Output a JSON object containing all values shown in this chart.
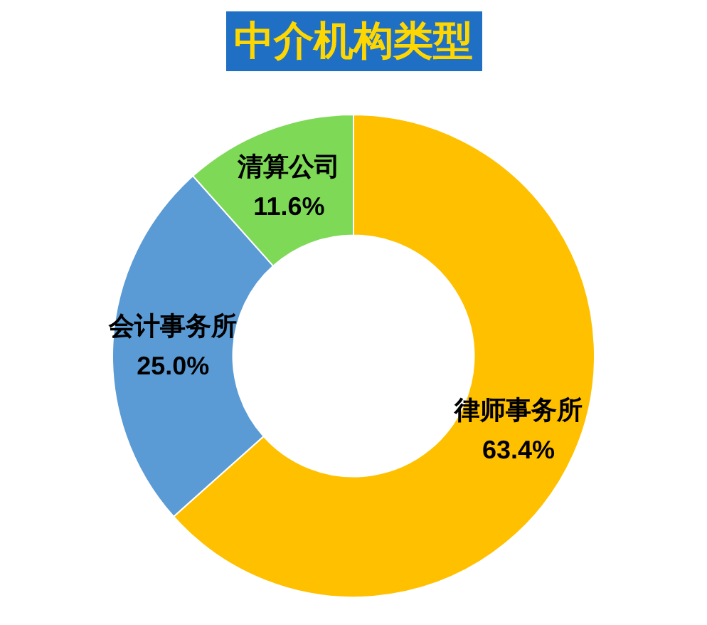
{
  "chart_data": {
    "type": "donut",
    "title": "中介机构类型",
    "categories": [
      "律师事务所",
      "会计事务所",
      "清算公司"
    ],
    "values": [
      63.4,
      25.0,
      11.6
    ],
    "value_labels": [
      "63.4%",
      "25.0%",
      "11.6%"
    ],
    "colors": [
      "#ffc000",
      "#5b9bd5",
      "#7ed957"
    ],
    "legend": false
  }
}
